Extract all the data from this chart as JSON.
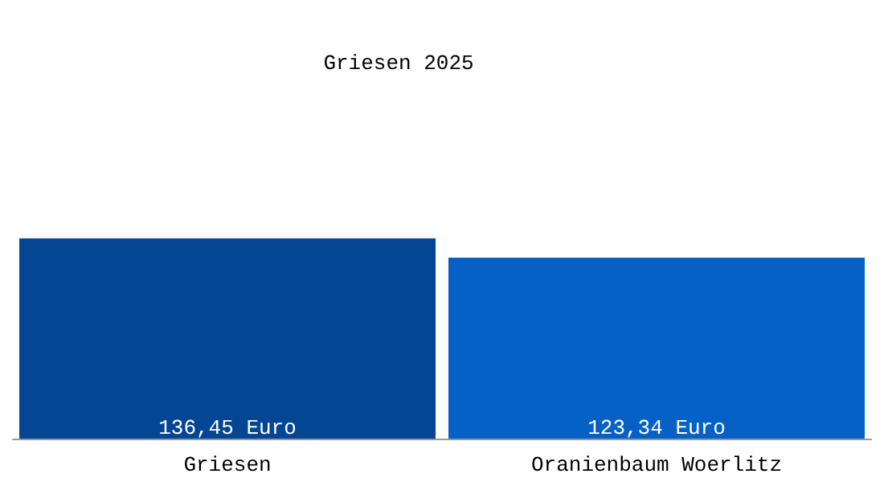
{
  "chart_data": {
    "type": "bar",
    "title": "Griesen 2025",
    "categories": [
      "Griesen",
      "Oranienbaum Woerlitz"
    ],
    "values": [
      136.45,
      123.34
    ],
    "colors": [
      "#034694",
      "#0561c6"
    ],
    "value_labels": [
      "136,45 Euro",
      "123,34 Euro"
    ]
  }
}
